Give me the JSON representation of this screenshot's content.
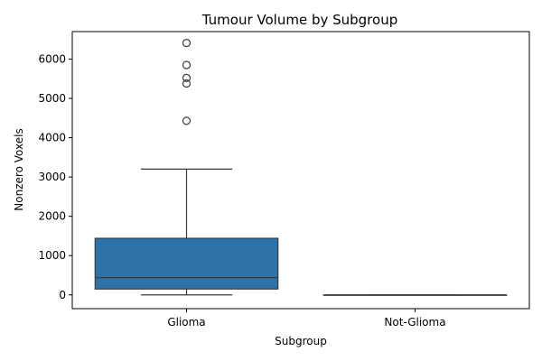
{
  "chart_data": {
    "type": "box",
    "title": "Tumour Volume by Subgroup",
    "xlabel": "Subgroup",
    "ylabel": "Nonzero Voxels",
    "categories": [
      "Glioma",
      "Not-Glioma"
    ],
    "ylim": [
      -350,
      6700
    ],
    "yticks": [
      0,
      1000,
      2000,
      3000,
      4000,
      5000,
      6000
    ],
    "ytick_labels": [
      "0",
      "1000",
      "2000",
      "3000",
      "4000",
      "5000",
      "6000"
    ],
    "grid": false,
    "box_color": "#2f72a8",
    "boxes": [
      {
        "category": "Glioma",
        "whisker_low": 0,
        "q1": 150,
        "median": 440,
        "q3": 1440,
        "whisker_high": 3200,
        "outliers": [
          4430,
          5380,
          5520,
          5850,
          6410
        ]
      },
      {
        "category": "Not-Glioma",
        "whisker_low": 0,
        "q1": 0,
        "median": 0,
        "q3": 0,
        "whisker_high": 0,
        "outliers": []
      }
    ]
  }
}
